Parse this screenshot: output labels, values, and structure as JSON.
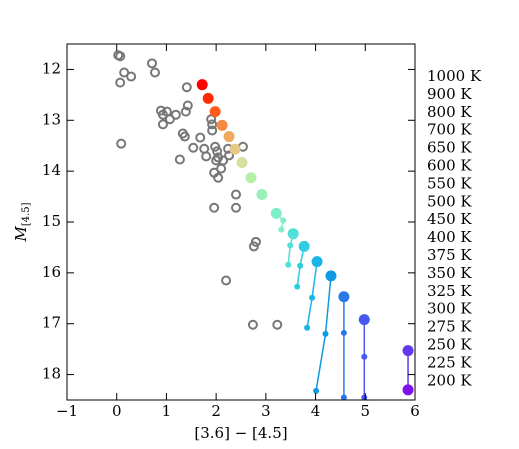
{
  "chart_data": {
    "type": "scatter",
    "xlabel": "[3.6] − [4.5]",
    "ylabel": "M",
    "ylabel_sub": "[4.5]",
    "xlim": [
      -1,
      6
    ],
    "ylim": [
      18.5,
      11.5
    ],
    "xticks": [
      {
        "value": -1,
        "label": "−1"
      },
      0,
      1,
      2,
      3,
      4,
      5,
      6
    ],
    "yticks": [
      12,
      13,
      14,
      15,
      16,
      17,
      18
    ],
    "observed": {
      "color": "#777777",
      "x": [
        0.03,
        0.07,
        0.15,
        0.29,
        0.07,
        0.71,
        0.77,
        1.41,
        0.89,
        0.93,
        1.01,
        1.07,
        0.93,
        1.19,
        1.43,
        1.39,
        0.09,
        1.33,
        1.37,
        1.27,
        1.54,
        1.68,
        1.76,
        1.8,
        1.9,
        1.92,
        1.92,
        1.98,
        2.02,
        2.04,
        1.96,
        2.04,
        2.0,
        1.96,
        2.1,
        2.14,
        2.24,
        2.26,
        2.4,
        2.4,
        2.54,
        2.8,
        2.76,
        2.2,
        2.74,
        3.23
      ],
      "y": [
        11.72,
        11.74,
        12.06,
        12.14,
        12.26,
        11.88,
        12.06,
        12.35,
        12.81,
        12.89,
        12.83,
        12.98,
        13.08,
        12.89,
        12.71,
        12.83,
        13.46,
        13.26,
        13.32,
        13.77,
        13.54,
        13.34,
        13.56,
        13.71,
        12.98,
        13.08,
        13.2,
        13.52,
        13.61,
        13.73,
        14.03,
        14.13,
        13.79,
        14.72,
        13.95,
        13.79,
        13.56,
        13.69,
        14.46,
        14.72,
        13.52,
        15.39,
        15.48,
        16.15,
        17.02,
        17.02
      ]
    },
    "series": [
      {
        "name": "1000 K",
        "color": "#ff0000",
        "x": [
          1.72
        ],
        "y": [
          12.3
        ]
      },
      {
        "name": "900 K",
        "color": "#ff2a00",
        "x": [
          1.84
        ],
        "y": [
          12.57
        ]
      },
      {
        "name": "800 K",
        "color": "#ff5a1a",
        "x": [
          1.98
        ],
        "y": [
          12.83
        ]
      },
      {
        "name": "700 K",
        "color": "#f58a40",
        "x": [
          2.12
        ],
        "y": [
          13.1
        ]
      },
      {
        "name": "650 K",
        "color": "#eeab60",
        "x": [
          2.26
        ],
        "y": [
          13.32
        ]
      },
      {
        "name": "600 K",
        "color": "#e8c888",
        "x": [
          2.38
        ],
        "y": [
          13.57
        ]
      },
      {
        "name": "550 K",
        "color": "#d8e0a0",
        "x": [
          2.52
        ],
        "y": [
          13.83
        ]
      },
      {
        "name": "500 K",
        "color": "#b8eea8",
        "x": [
          2.7
        ],
        "y": [
          14.13
        ]
      },
      {
        "name": "450 K",
        "color": "#98f0b8",
        "x": [
          2.92
        ],
        "y": [
          14.46
        ]
      },
      {
        "name": "400 K",
        "color": "#7ef0c8",
        "x": [
          3.21,
          3.35,
          3.31
        ],
        "y": [
          14.83,
          14.97,
          15.15
        ]
      },
      {
        "name": "375 K",
        "color": "#50e0d8",
        "x": [
          3.55,
          3.49,
          3.45
        ],
        "y": [
          15.23,
          15.46,
          15.84
        ]
      },
      {
        "name": "350 K",
        "color": "#30cce0",
        "x": [
          3.77,
          3.69,
          3.63
        ],
        "y": [
          15.48,
          15.86,
          16.27
        ]
      },
      {
        "name": "325 K",
        "color": "#1ab4e8",
        "x": [
          4.03,
          3.93,
          3.83
        ],
        "y": [
          15.78,
          16.49,
          17.08
        ]
      },
      {
        "name": "300 K",
        "color": "#1098e0",
        "x": [
          4.31,
          4.2,
          4.01
        ],
        "y": [
          16.06,
          17.2,
          18.32
        ]
      },
      {
        "name": "275 K",
        "color": "#2a78e8",
        "x": [
          4.57,
          4.57,
          4.57
        ],
        "y": [
          16.47,
          17.18,
          18.45
        ]
      },
      {
        "name": "250 K",
        "color": "#4858ee",
        "x": [
          4.98,
          4.98,
          4.98
        ],
        "y": [
          16.92,
          17.65,
          18.45
        ]
      },
      {
        "name": "225 K",
        "color": "#6038ee",
        "x": [
          5.86,
          5.86
        ],
        "y": [
          17.53,
          18.3
        ]
      },
      {
        "name": "200 K",
        "color": "#8010ee",
        "x": [
          5.86
        ],
        "y": [
          18.3
        ]
      }
    ]
  }
}
